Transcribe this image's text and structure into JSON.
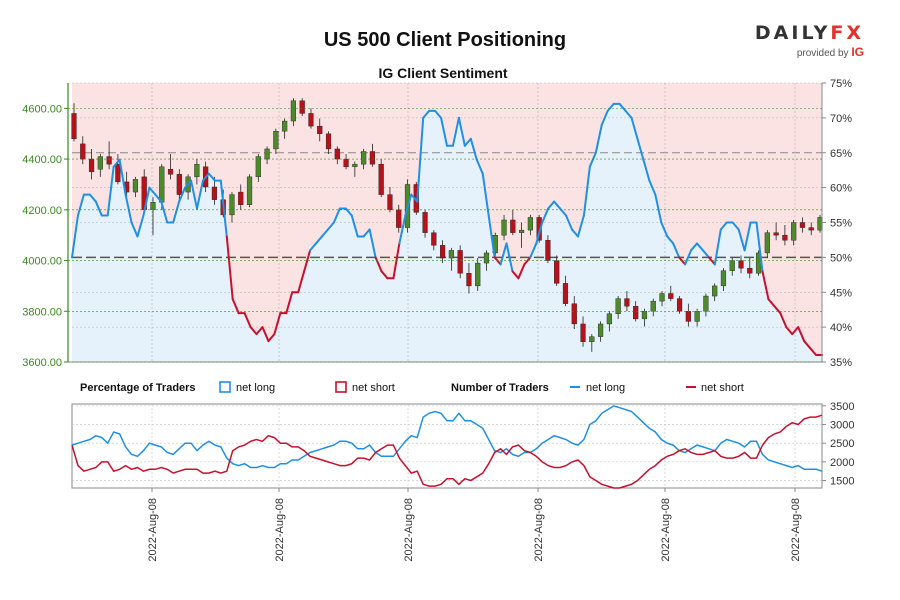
{
  "title": "US 500 Client Positioning",
  "subtitle": "IG Client Sentiment",
  "brand": {
    "name_a": "DAILY",
    "name_b": "FX",
    "provided_by": "provided by",
    "provider": "IG"
  },
  "colors": {
    "net_long": "#1e90e6",
    "net_short": "#c8102e",
    "long_fill": "#e6f2fb",
    "short_fill": "#fbe3e3",
    "bull_candle": "#4d8a2b",
    "bear_candle": "#b5121b",
    "left_axis": "#3a8a1e"
  },
  "chart_data": [
    {
      "type": "candlestick",
      "name": "price",
      "yaxis_left": {
        "ticks": [
          "3600.00",
          "3800.00",
          "4000.00",
          "4200.00",
          "4400.00",
          "4600.00"
        ],
        "range": [
          3600,
          4700
        ]
      },
      "yaxis_right": {
        "ticks": [
          "35%",
          "40%",
          "45%",
          "50%",
          "55%",
          "60%",
          "65%",
          "70%",
          "75%"
        ],
        "range": [
          35,
          75
        ]
      },
      "reference_line": 50,
      "net_long_pct": [
        50,
        56,
        59,
        59,
        58,
        56,
        56,
        63,
        64,
        59,
        55,
        53,
        56,
        60,
        59,
        58,
        55,
        55,
        58,
        60,
        61,
        57,
        61,
        62,
        61,
        61,
        53,
        44,
        42,
        42,
        40,
        39,
        40,
        38,
        39,
        42,
        42,
        45,
        45,
        48,
        51,
        52,
        53,
        54,
        55,
        57,
        57,
        56,
        53,
        53,
        54,
        50,
        48,
        47,
        47,
        52,
        56,
        59,
        58,
        70,
        71,
        71,
        70,
        66,
        66,
        70,
        66,
        67,
        64,
        62,
        56,
        50,
        49,
        52,
        48,
        47,
        49,
        50,
        52,
        55,
        57,
        58,
        57,
        56,
        54,
        53,
        56,
        63,
        65,
        69,
        71,
        72,
        72,
        71,
        70,
        67,
        64,
        61,
        59,
        55,
        53,
        52,
        50,
        49,
        51,
        52,
        51,
        50,
        49,
        54,
        55,
        55,
        54,
        51,
        55,
        55,
        48,
        44,
        43,
        42,
        40,
        39,
        40,
        38,
        37,
        36,
        36
      ]
    }
  ],
  "price_candles": [
    [
      4580,
      4620,
      4470,
      4480
    ],
    [
      4460,
      4490,
      4380,
      4400
    ],
    [
      4400,
      4440,
      4320,
      4350
    ],
    [
      4360,
      4420,
      4330,
      4410
    ],
    [
      4410,
      4470,
      4360,
      4380
    ],
    [
      4380,
      4420,
      4300,
      4310
    ],
    [
      4310,
      4350,
      4250,
      4270
    ],
    [
      4270,
      4330,
      4250,
      4320
    ],
    [
      4330,
      4360,
      4190,
      4200
    ],
    [
      4200,
      4250,
      4100,
      4230
    ],
    [
      4230,
      4380,
      4200,
      4370
    ],
    [
      4360,
      4420,
      4320,
      4340
    ],
    [
      4340,
      4360,
      4240,
      4260
    ],
    [
      4270,
      4340,
      4240,
      4330
    ],
    [
      4330,
      4400,
      4300,
      4380
    ],
    [
      4370,
      4390,
      4270,
      4290
    ],
    [
      4290,
      4330,
      4220,
      4240
    ],
    [
      4240,
      4280,
      4170,
      4180
    ],
    [
      4180,
      4270,
      4150,
      4260
    ],
    [
      4270,
      4300,
      4200,
      4220
    ],
    [
      4220,
      4340,
      4210,
      4330
    ],
    [
      4330,
      4420,
      4310,
      4410
    ],
    [
      4400,
      4450,
      4380,
      4440
    ],
    [
      4440,
      4520,
      4420,
      4510
    ],
    [
      4510,
      4560,
      4480,
      4550
    ],
    [
      4550,
      4640,
      4530,
      4630
    ],
    [
      4630,
      4640,
      4570,
      4580
    ],
    [
      4580,
      4600,
      4520,
      4530
    ],
    [
      4530,
      4560,
      4470,
      4500
    ],
    [
      4500,
      4510,
      4420,
      4440
    ],
    [
      4440,
      4450,
      4380,
      4400
    ],
    [
      4400,
      4420,
      4360,
      4370
    ],
    [
      4370,
      4390,
      4330,
      4380
    ],
    [
      4380,
      4440,
      4360,
      4430
    ],
    [
      4430,
      4460,
      4370,
      4380
    ],
    [
      4380,
      4400,
      4250,
      4260
    ],
    [
      4260,
      4290,
      4190,
      4200
    ],
    [
      4200,
      4220,
      4110,
      4130
    ],
    [
      4130,
      4320,
      4110,
      4300
    ],
    [
      4300,
      4310,
      4180,
      4190
    ],
    [
      4190,
      4200,
      4090,
      4110
    ],
    [
      4110,
      4120,
      4040,
      4060
    ],
    [
      4060,
      4080,
      3990,
      4010
    ],
    [
      4010,
      4050,
      3960,
      4040
    ],
    [
      4040,
      4060,
      3930,
      3950
    ],
    [
      3950,
      3990,
      3870,
      3900
    ],
    [
      3900,
      4010,
      3880,
      3990
    ],
    [
      3990,
      4040,
      3960,
      4030
    ],
    [
      4030,
      4110,
      4010,
      4100
    ],
    [
      4100,
      4180,
      4080,
      4160
    ],
    [
      4160,
      4200,
      4100,
      4110
    ],
    [
      4110,
      4150,
      4050,
      4120
    ],
    [
      4120,
      4180,
      4100,
      4170
    ],
    [
      4170,
      4180,
      4070,
      4080
    ],
    [
      4080,
      4100,
      3990,
      4000
    ],
    [
      4000,
      4020,
      3900,
      3910
    ],
    [
      3910,
      3940,
      3820,
      3830
    ],
    [
      3830,
      3860,
      3730,
      3750
    ],
    [
      3750,
      3780,
      3660,
      3680
    ],
    [
      3680,
      3710,
      3640,
      3700
    ],
    [
      3700,
      3760,
      3680,
      3750
    ],
    [
      3750,
      3800,
      3720,
      3790
    ],
    [
      3790,
      3860,
      3770,
      3850
    ],
    [
      3850,
      3880,
      3800,
      3820
    ],
    [
      3820,
      3840,
      3760,
      3770
    ],
    [
      3770,
      3810,
      3740,
      3800
    ],
    [
      3800,
      3850,
      3780,
      3840
    ],
    [
      3840,
      3880,
      3820,
      3870
    ],
    [
      3870,
      3900,
      3840,
      3850
    ],
    [
      3850,
      3860,
      3790,
      3800
    ],
    [
      3800,
      3830,
      3740,
      3760
    ],
    [
      3760,
      3810,
      3740,
      3800
    ],
    [
      3800,
      3870,
      3780,
      3860
    ],
    [
      3860,
      3910,
      3840,
      3900
    ],
    [
      3900,
      3970,
      3880,
      3960
    ],
    [
      3960,
      4010,
      3940,
      4000
    ],
    [
      4000,
      4020,
      3950,
      3970
    ],
    [
      3970,
      4010,
      3930,
      3950
    ],
    [
      3950,
      4040,
      3940,
      4030
    ],
    [
      4030,
      4120,
      4010,
      4110
    ],
    [
      4110,
      4150,
      4080,
      4100
    ],
    [
      4100,
      4140,
      4060,
      4080
    ],
    [
      4080,
      4160,
      4060,
      4150
    ],
    [
      4150,
      4170,
      4110,
      4130
    ],
    [
      4130,
      4150,
      4100,
      4120
    ],
    [
      4120,
      4180,
      4110,
      4170
    ]
  ],
  "lower_panel": {
    "title_left": "Percentage of Traders",
    "title_right": "Number of Traders",
    "legend": {
      "pct_long": "net long",
      "pct_short": "net short",
      "num_long": "net long",
      "num_short": "net short"
    },
    "yaxis_right": {
      "ticks": [
        "1500",
        "2000",
        "2500",
        "3000",
        "3500"
      ],
      "range": [
        1300,
        3550
      ]
    },
    "net_long_traders": [
      2450,
      2500,
      2550,
      2600,
      2700,
      2650,
      2500,
      2800,
      2750,
      2400,
      2200,
      2150,
      2300,
      2500,
      2450,
      2400,
      2250,
      2200,
      2350,
      2500,
      2500,
      2300,
      2450,
      2550,
      2450,
      2400,
      2100,
      1950,
      1900,
      1950,
      1850,
      1850,
      1900,
      1850,
      1850,
      1950,
      1950,
      2050,
      2050,
      2150,
      2250,
      2300,
      2350,
      2400,
      2450,
      2550,
      2550,
      2500,
      2350,
      2350,
      2450,
      2250,
      2150,
      2150,
      2150,
      2350,
      2550,
      2700,
      2650,
      3200,
      3300,
      3350,
      3300,
      3100,
      3100,
      3300,
      3100,
      3100,
      3000,
      2900,
      2600,
      2300,
      2250,
      2350,
      2200,
      2150,
      2250,
      2250,
      2350,
      2500,
      2600,
      2700,
      2650,
      2600,
      2500,
      2450,
      2600,
      3000,
      3100,
      3300,
      3400,
      3500,
      3450,
      3400,
      3350,
      3200,
      3050,
      2900,
      2800,
      2600,
      2500,
      2450,
      2300,
      2250,
      2350,
      2450,
      2400,
      2350,
      2300,
      2500,
      2600,
      2550,
      2500,
      2400,
      2550,
      2550,
      2200,
      2050,
      2000,
      1950,
      1900,
      1850,
      1900,
      1800,
      1800,
      1800,
      1750
    ],
    "net_short_traders": [
      2450,
      1900,
      1750,
      1800,
      1850,
      2000,
      2000,
      1750,
      1800,
      1900,
      1800,
      1850,
      1750,
      1800,
      1800,
      1850,
      1800,
      1700,
      1750,
      1800,
      1800,
      1800,
      1700,
      1700,
      1750,
      1700,
      1750,
      2300,
      2400,
      2450,
      2550,
      2600,
      2550,
      2700,
      2650,
      2500,
      2500,
      2400,
      2400,
      2300,
      2150,
      2100,
      2050,
      2000,
      1950,
      1900,
      1900,
      1950,
      2100,
      2100,
      2050,
      2250,
      2350,
      2450,
      2450,
      2100,
      1900,
      1700,
      1750,
      1400,
      1350,
      1350,
      1400,
      1550,
      1550,
      1400,
      1550,
      1500,
      1600,
      1700,
      1950,
      2250,
      2350,
      2200,
      2400,
      2450,
      2300,
      2250,
      2150,
      2000,
      1900,
      1850,
      1850,
      1900,
      2000,
      2050,
      1900,
      1600,
      1500,
      1400,
      1350,
      1300,
      1300,
      1350,
      1400,
      1500,
      1650,
      1800,
      1900,
      2050,
      2150,
      2200,
      2300,
      2350,
      2250,
      2200,
      2200,
      2250,
      2300,
      2150,
      2100,
      2100,
      2150,
      2250,
      2100,
      2100,
      2450,
      2650,
      2750,
      2800,
      2950,
      3050,
      3000,
      3150,
      3200,
      3200,
      3250
    ]
  },
  "x_labels": [
    "2022-Aug-08",
    "2022-Aug-08",
    "2022-Aug-08",
    "2022-Aug-08",
    "2022-Aug-08",
    "2022-Aug-08"
  ]
}
